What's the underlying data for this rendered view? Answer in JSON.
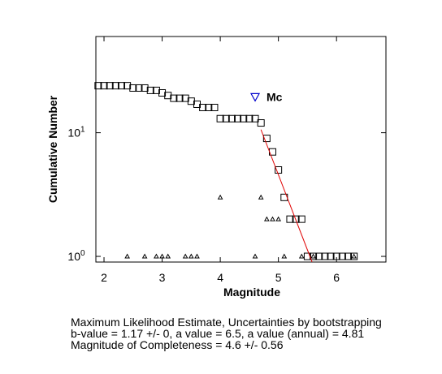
{
  "chart_data": {
    "type": "scatter",
    "xlabel": "Magnitude",
    "ylabel": "Cumulative Number",
    "xlim": [
      1.86,
      6.85
    ],
    "ylim": [
      0.9,
      60
    ],
    "log_y": true,
    "xticks": [
      2,
      3,
      4,
      5,
      6
    ],
    "yticks": [
      {
        "value": 1,
        "label": "10",
        "exponent": "0"
      },
      {
        "value": 10,
        "label": "10",
        "exponent": "1"
      }
    ],
    "series": [
      {
        "marker": "square",
        "color": "#000000",
        "x": [
          1.9,
          2.0,
          2.1,
          2.2,
          2.3,
          2.4,
          2.5,
          2.6,
          2.7,
          2.8,
          2.9,
          3.0,
          3.1,
          3.2,
          3.3,
          3.4,
          3.5,
          3.6,
          3.7,
          3.8,
          3.9,
          4.0,
          4.1,
          4.2,
          4.3,
          4.4,
          4.5,
          4.6,
          4.7,
          4.8,
          4.9,
          5.0,
          5.1,
          5.2,
          5.3,
          5.4,
          5.5,
          5.6,
          5.7,
          5.8,
          5.9,
          6.0,
          6.1,
          6.2,
          6.3
        ],
        "values": [
          24,
          24,
          24,
          24,
          24,
          24,
          23,
          23,
          23,
          22,
          22,
          21,
          20,
          19,
          19,
          19,
          18,
          17,
          16,
          16,
          16,
          13,
          13,
          13,
          13,
          13,
          13,
          13,
          12,
          9,
          7,
          5,
          3,
          2,
          2,
          2,
          1,
          1,
          1,
          1,
          1,
          1,
          1,
          1,
          1
        ]
      },
      {
        "marker": "triangle",
        "color": "#000000",
        "x": [
          2.4,
          2.7,
          2.9,
          3.0,
          3.1,
          3.4,
          3.5,
          3.6,
          4.0,
          4.6,
          4.7,
          4.8,
          4.9,
          5.0,
          5.1,
          5.4,
          5.6,
          6.3
        ],
        "values": [
          1,
          1,
          1,
          1,
          1,
          1,
          1,
          1,
          3,
          1,
          3,
          2,
          2,
          2,
          1,
          1,
          1,
          1
        ]
      }
    ],
    "fit": {
      "color": "#e00000",
      "x": [
        4.7,
        5.58
      ],
      "values": [
        10.6,
        0.9
      ]
    },
    "mc": {
      "label": "Mc",
      "color": "#0000cc",
      "x": 4.6,
      "value": 19.5
    },
    "notes": [
      "Maximum Likelihood Estimate, Uncertainties by bootstrapping",
      "b-value = 1.17 +/- 0,  a value = 6.5,  a value (annual) = 4.81",
      "Magnitude of Completeness = 4.6 +/- 0.56"
    ]
  }
}
